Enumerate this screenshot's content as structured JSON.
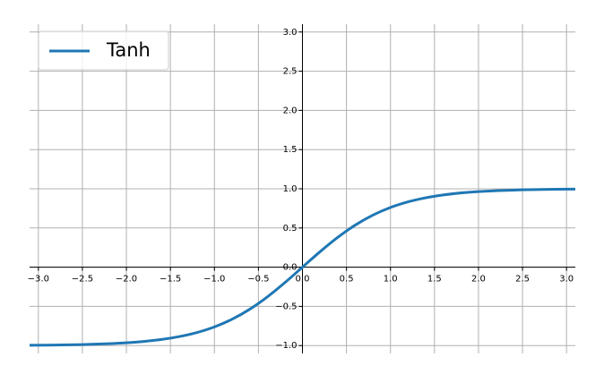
{
  "chart_data": {
    "type": "line",
    "x": [
      -3.1,
      -2.8,
      -2.5,
      -2.2,
      -2.0,
      -1.8,
      -1.6,
      -1.4,
      -1.2,
      -1.0,
      -0.8,
      -0.6,
      -0.4,
      -0.2,
      0,
      0.2,
      0.4,
      0.6,
      0.8,
      1.0,
      1.2,
      1.4,
      1.6,
      1.8,
      2.0,
      2.2,
      2.5,
      2.8,
      3.1
    ],
    "series": [
      {
        "name": "Tanh",
        "color": "#1f77b4",
        "values": [
          -0.9959,
          -0.9926,
          -0.9866,
          -0.9757,
          -0.964,
          -0.9468,
          -0.9217,
          -0.8854,
          -0.8337,
          -0.7616,
          -0.664,
          -0.537,
          -0.3799,
          -0.1974,
          0,
          0.1974,
          0.3799,
          0.537,
          0.664,
          0.7616,
          0.8337,
          0.8854,
          0.9217,
          0.9468,
          0.964,
          0.9757,
          0.9866,
          0.9926,
          0.9959
        ]
      }
    ],
    "xlim": [
      -3.1,
      3.1
    ],
    "ylim": [
      -1.1,
      3.1
    ],
    "xticks": [
      {
        "value": -3.0,
        "label": "−3.0"
      },
      {
        "value": -2.5,
        "label": "−2.5"
      },
      {
        "value": -2.0,
        "label": "−2.0"
      },
      {
        "value": -1.5,
        "label": "−1.5"
      },
      {
        "value": -1.0,
        "label": "−1.0"
      },
      {
        "value": -0.5,
        "label": "−0.5"
      },
      {
        "value": 0,
        "label": "0.0"
      },
      {
        "value": 0.5,
        "label": "0.5"
      },
      {
        "value": 1.0,
        "label": "1.0"
      },
      {
        "value": 1.5,
        "label": "1.5"
      },
      {
        "value": 2.0,
        "label": "2.0"
      },
      {
        "value": 2.5,
        "label": "2.5"
      },
      {
        "value": 3.0,
        "label": "3.0"
      }
    ],
    "yticks": [
      {
        "value": -1.0,
        "label": "−1.0"
      },
      {
        "value": -0.5,
        "label": "−0.5"
      },
      {
        "value": 0,
        "label": "0.0"
      },
      {
        "value": 0.5,
        "label": "0.5"
      },
      {
        "value": 1.0,
        "label": "1.0"
      },
      {
        "value": 1.5,
        "label": "1.5"
      },
      {
        "value": 2.0,
        "label": "2.0"
      },
      {
        "value": 2.5,
        "label": "2.5"
      },
      {
        "value": 3.0,
        "label": "3.0"
      }
    ],
    "grid": true,
    "legend": "upper left"
  }
}
